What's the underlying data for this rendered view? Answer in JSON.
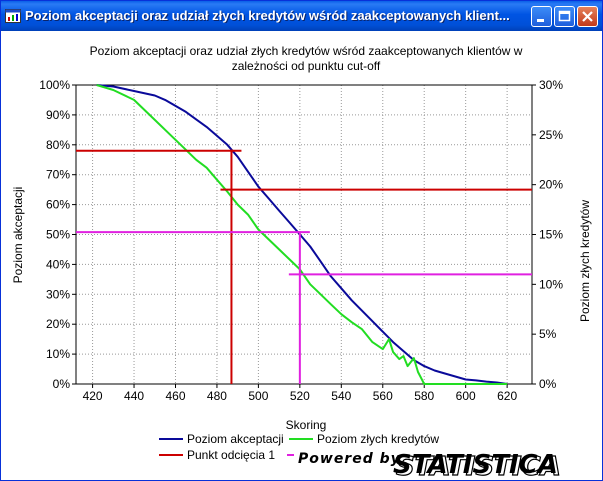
{
  "window": {
    "title": "Poziom akceptacji oraz udział złych kredytów wśród zaakceptowanych klient..."
  },
  "chart_data": {
    "type": "line",
    "title_line1": "Poziom akceptacji oraz udział złych kredytów wśród zaakceptowanych klientów w",
    "title_line2": "zależności od punktu cut-off",
    "xlabel": "Skoring",
    "ylabel_left": "Poziom akceptacji",
    "ylabel_right": "Poziom złych kredytów",
    "xlim": [
      412,
      632
    ],
    "ylim_left": [
      0,
      100
    ],
    "ylim_right": [
      0,
      30
    ],
    "x_ticks": [
      "420",
      "440",
      "460",
      "480",
      "500",
      "520",
      "540",
      "560",
      "580",
      "600",
      "620"
    ],
    "y_left_ticks": [
      "0%",
      "10%",
      "20%",
      "30%",
      "40%",
      "50%",
      "60%",
      "70%",
      "80%",
      "90%",
      "100%"
    ],
    "y_right_ticks": [
      "0%",
      "5%",
      "10%",
      "15%",
      "20%",
      "25%",
      "30%"
    ],
    "grid": true,
    "legend": [
      "Poziom akceptacji",
      "Poziom złych kredytów",
      "Punkt odcięcia 1"
    ],
    "series": [
      {
        "name": "Poziom akceptacji",
        "color": "#0A0A9A",
        "axis": "left",
        "x": [
          422,
          430,
          440,
          450,
          455,
          460,
          465,
          470,
          475,
          480,
          485,
          490,
          495,
          500,
          505,
          510,
          515,
          520,
          525,
          530,
          535,
          540,
          545,
          550,
          555,
          560,
          565,
          570,
          575,
          580,
          585,
          590,
          595,
          600,
          605,
          610,
          615,
          620
        ],
        "y": [
          100,
          99.5,
          98,
          96.5,
          95,
          93,
          91,
          88.5,
          86,
          83,
          80,
          76,
          71,
          66,
          62,
          58,
          54,
          50,
          46,
          41,
          36,
          32,
          28,
          24.5,
          21,
          17.5,
          14,
          11,
          8,
          6,
          4.5,
          3.5,
          2.5,
          1.5,
          1.2,
          0.8,
          0.5,
          0
        ]
      },
      {
        "name": "Poziom złych kredytów",
        "color": "#22DD22",
        "axis": "right",
        "x": [
          422,
          430,
          440,
          445,
          450,
          455,
          460,
          465,
          470,
          475,
          480,
          485,
          490,
          495,
          500,
          505,
          510,
          515,
          520,
          525,
          530,
          535,
          540,
          545,
          550,
          555,
          560,
          563,
          565,
          568,
          570,
          572,
          575,
          577,
          578,
          580,
          585,
          590,
          600,
          610,
          620
        ],
        "y": [
          30,
          29.5,
          28.5,
          27.5,
          26.5,
          25.5,
          24.5,
          23.5,
          22.5,
          21.7,
          20.5,
          19.3,
          18,
          17,
          15.5,
          14.5,
          13.5,
          12.5,
          11.5,
          10,
          9,
          8,
          7,
          6.2,
          5.5,
          4.2,
          3.5,
          4.5,
          3.2,
          2.5,
          2.8,
          1.8,
          2.6,
          1.2,
          0.8,
          0,
          0,
          0,
          0,
          0,
          0
        ]
      },
      {
        "name": "Punkt odcięcia 1",
        "color": "#CC0000",
        "axis": "left"
      }
    ],
    "cutoff_lines": [
      {
        "color": "#CC0000",
        "x": 487,
        "accept_y": 78,
        "bad_y_right": 19.5
      },
      {
        "color": "#E020E0",
        "x": 520,
        "accept_y": 50.8,
        "bad_y_right": 11
      }
    ]
  }
}
